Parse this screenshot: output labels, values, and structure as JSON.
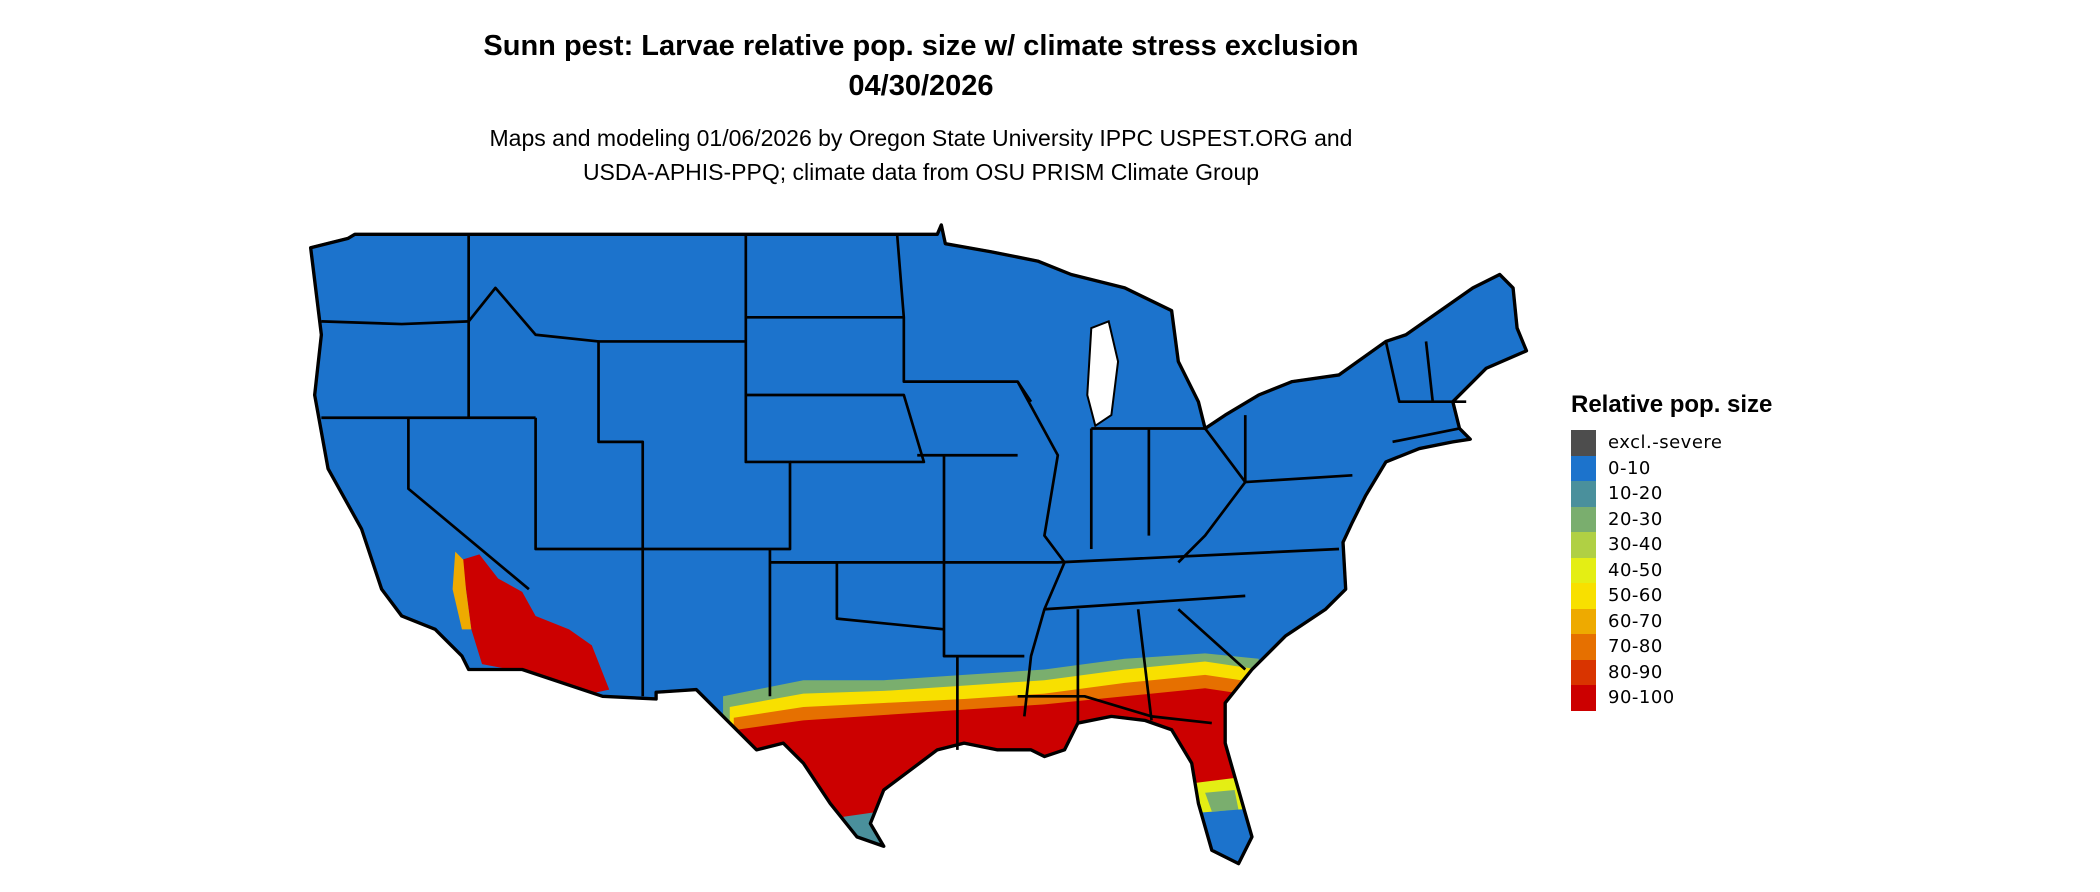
{
  "title": {
    "line1": "Sunn pest: Larvae relative pop. size w/ climate stress exclusion",
    "line2": "04/30/2026"
  },
  "subtitle": {
    "line1": "Maps and modeling 01/06/2026 by Oregon State University IPPC USPEST.ORG and",
    "line2": "USDA-APHIS-PPQ; climate data from OSU PRISM Climate Group"
  },
  "legend": {
    "title": "Relative pop. size",
    "items": [
      {
        "label": "excl.-severe",
        "color": "#4d4d4d"
      },
      {
        "label": "0-10",
        "color": "#1c73cc"
      },
      {
        "label": "10-20",
        "color": "#4a909c"
      },
      {
        "label": "20-30",
        "color": "#7aae6e"
      },
      {
        "label": "30-40",
        "color": "#b0d044"
      },
      {
        "label": "40-50",
        "color": "#e4ee14"
      },
      {
        "label": "50-60",
        "color": "#f8e000"
      },
      {
        "label": "60-70",
        "color": "#eeaa00"
      },
      {
        "label": "70-80",
        "color": "#e67000"
      },
      {
        "label": "80-90",
        "color": "#d93400"
      },
      {
        "label": "90-100",
        "color": "#cc0000"
      }
    ]
  },
  "map": {
    "region": "Contiguous United States",
    "dominant_class": "0-10",
    "high_classes_regions": [
      "Southern California / Arizona desert",
      "Gulf Coast",
      "Florida"
    ]
  }
}
